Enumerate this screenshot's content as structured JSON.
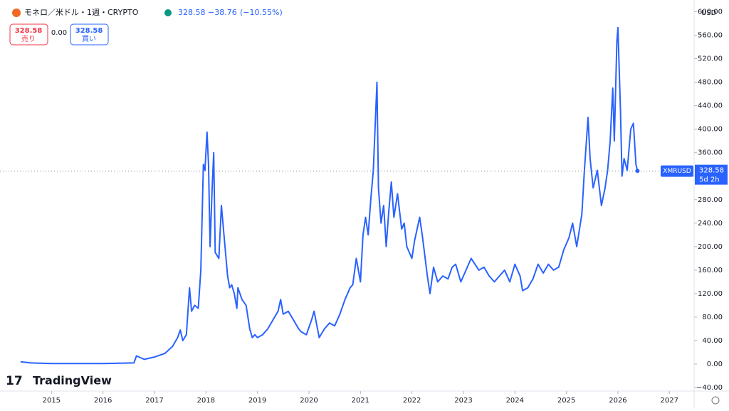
{
  "header": {
    "symbol": "モネロ／米ドル・1週・CRYPTO",
    "price": "328.58",
    "change": "−38.76",
    "change_pct": "(−10.55%)",
    "sell_price": "328.58",
    "sell_label": "売り",
    "spread": "0.00",
    "buy_price": "328.58",
    "buy_label": "買い",
    "currency": "USD",
    "price_tag": {
      "symbol": "XMRUSD",
      "price": "328.58",
      "countdown": "5d 2h"
    },
    "brand": "TradingView"
  },
  "chart_data": {
    "type": "line",
    "last_price": 328.58,
    "xlim": [
      2014.0,
      2027.48
    ],
    "xticks": [
      2015,
      2016,
      2017,
      2018,
      2019,
      2020,
      2021,
      2022,
      2023,
      2024,
      2025,
      2026,
      2027
    ],
    "ylim": [
      -46,
      620
    ],
    "yticks": [
      {
        "value": -40,
        "label": "−40.00"
      },
      {
        "value": 0,
        "label": "0.00"
      },
      {
        "value": 40,
        "label": "40.00"
      },
      {
        "value": 80,
        "label": "80.00"
      },
      {
        "value": 120,
        "label": "120.00"
      },
      {
        "value": 160,
        "label": "160.00"
      },
      {
        "value": 200,
        "label": "200.00"
      },
      {
        "value": 240,
        "label": "240.00"
      },
      {
        "value": 280,
        "label": "280.00"
      },
      {
        "value": 320,
        "label": "320.00"
      },
      {
        "value": 360,
        "label": "360.00"
      },
      {
        "value": 400,
        "label": "400.00"
      },
      {
        "value": 440,
        "label": "440.00"
      },
      {
        "value": 480,
        "label": "480.00"
      },
      {
        "value": 520,
        "label": "520.00"
      },
      {
        "value": 560,
        "label": "560.00"
      },
      {
        "value": 600,
        "label": "600.00"
      }
    ],
    "series": [
      {
        "name": "XMRUSD",
        "color": "#2962ff",
        "x": [
          2014.4,
          2014.6,
          2015,
          2016,
          2016.6,
          2016.65,
          2016.8,
          2017.0,
          2017.2,
          2017.35,
          2017.45,
          2017.5,
          2017.55,
          2017.62,
          2017.68,
          2017.72,
          2017.78,
          2017.85,
          2017.9,
          2017.95,
          2017.98,
          2018.02,
          2018.05,
          2018.08,
          2018.12,
          2018.15,
          2018.18,
          2018.25,
          2018.3,
          2018.35,
          2018.42,
          2018.46,
          2018.5,
          2018.55,
          2018.6,
          2018.62,
          2018.7,
          2018.78,
          2018.85,
          2018.9,
          2018.95,
          2019.0,
          2019.1,
          2019.2,
          2019.3,
          2019.4,
          2019.45,
          2019.5,
          2019.6,
          2019.7,
          2019.8,
          2019.85,
          2019.95,
          2020.05,
          2020.1,
          2020.2,
          2020.3,
          2020.4,
          2020.5,
          2020.6,
          2020.7,
          2020.8,
          2020.85,
          2020.92,
          2021.0,
          2021.05,
          2021.1,
          2021.15,
          2021.2,
          2021.25,
          2021.32,
          2021.35,
          2021.4,
          2021.45,
          2021.5,
          2021.55,
          2021.6,
          2021.65,
          2021.72,
          2021.8,
          2021.85,
          2021.9,
          2022.0,
          2022.05,
          2022.15,
          2022.2,
          2022.3,
          2022.35,
          2022.42,
          2022.5,
          2022.6,
          2022.7,
          2022.78,
          2022.85,
          2022.95,
          2023.05,
          2023.15,
          2023.3,
          2023.4,
          2023.5,
          2023.6,
          2023.7,
          2023.8,
          2023.9,
          2024.0,
          2024.1,
          2024.15,
          2024.25,
          2024.35,
          2024.45,
          2024.55,
          2024.65,
          2024.75,
          2024.85,
          2024.95,
          2025.05,
          2025.12,
          2025.2,
          2025.3,
          2025.35,
          2025.42,
          2025.46,
          2025.52,
          2025.6,
          2025.68,
          2025.75,
          2025.8,
          2025.85,
          2025.9,
          2025.93,
          2025.98,
          2026.0,
          2026.05,
          2026.08,
          2026.12,
          2026.18,
          2026.25,
          2026.3,
          2026.35,
          2026.38
        ],
        "values": [
          4,
          2,
          1,
          1,
          2,
          14,
          8,
          12,
          18,
          30,
          45,
          58,
          40,
          50,
          130,
          90,
          100,
          95,
          160,
          340,
          330,
          395,
          340,
          200,
          300,
          360,
          190,
          180,
          270,
          220,
          150,
          130,
          135,
          120,
          95,
          130,
          110,
          100,
          60,
          45,
          50,
          45,
          50,
          60,
          75,
          90,
          110,
          85,
          90,
          75,
          60,
          55,
          50,
          75,
          90,
          45,
          60,
          70,
          65,
          85,
          110,
          130,
          135,
          180,
          140,
          220,
          250,
          220,
          280,
          330,
          480,
          300,
          240,
          270,
          200,
          260,
          310,
          250,
          290,
          230,
          240,
          200,
          180,
          210,
          250,
          220,
          150,
          120,
          165,
          140,
          150,
          145,
          165,
          170,
          140,
          160,
          180,
          160,
          165,
          150,
          140,
          150,
          160,
          140,
          170,
          150,
          125,
          130,
          145,
          170,
          155,
          170,
          160,
          165,
          195,
          215,
          240,
          200,
          255,
          330,
          420,
          350,
          300,
          330,
          270,
          300,
          330,
          380,
          470,
          380,
          550,
          573,
          430,
          320,
          350,
          330,
          400,
          410,
          340,
          329
        ]
      }
    ]
  }
}
